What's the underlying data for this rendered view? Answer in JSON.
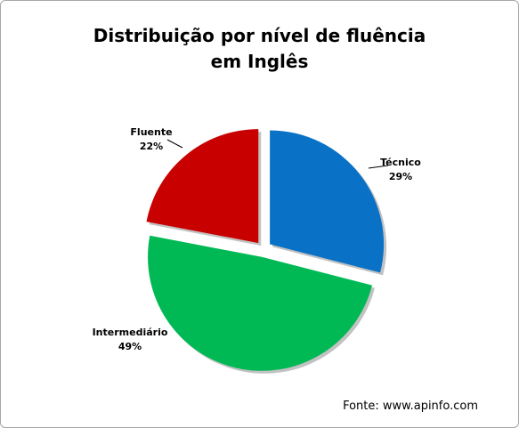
{
  "chart_data": {
    "type": "pie",
    "title": "Distribuição por nível de fluência em Inglês",
    "categories": [
      "Técnico",
      "Intermediário",
      "Fluente"
    ],
    "values": [
      29,
      49,
      22
    ],
    "value_labels": [
      "29%",
      "49%",
      "22%"
    ],
    "colors": [
      "#0a72c6",
      "#00b954",
      "#c80000"
    ],
    "annotation": "Fonte: www.apinfo.com"
  }
}
